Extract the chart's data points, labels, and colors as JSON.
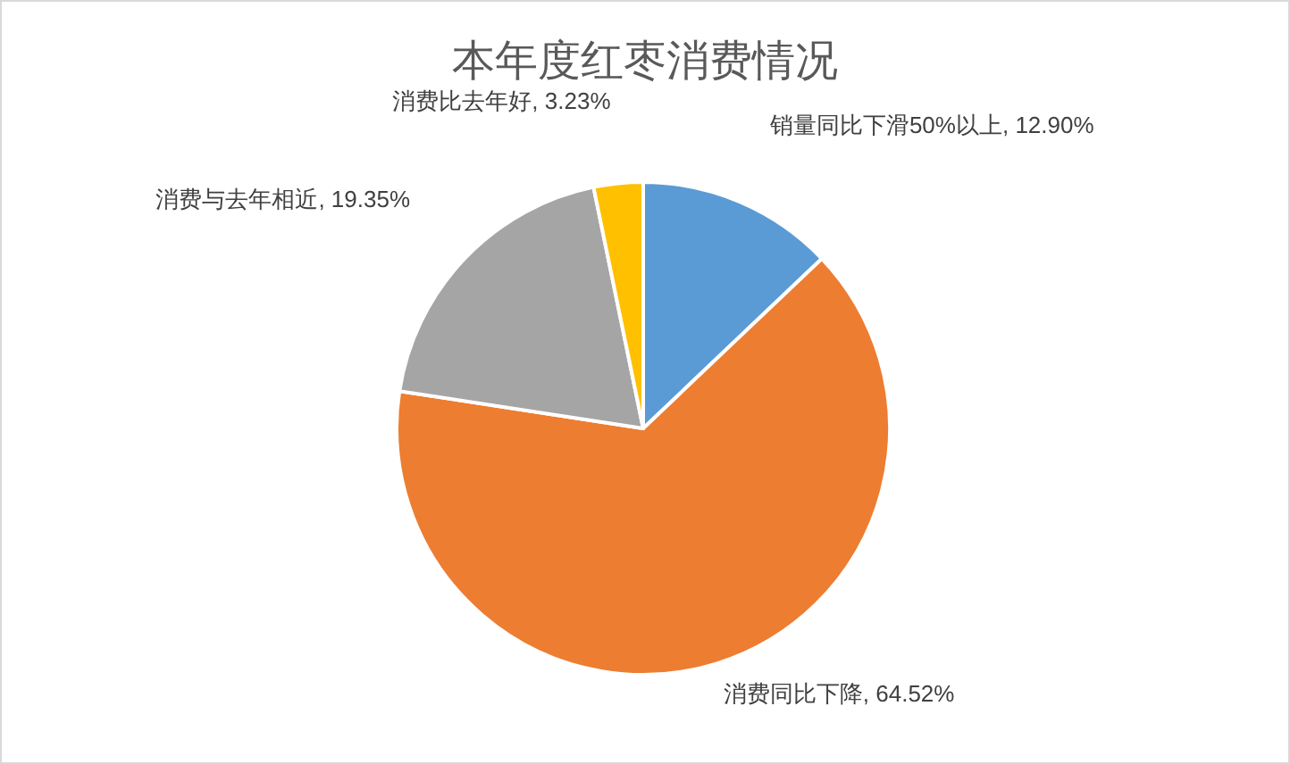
{
  "chart_data": {
    "type": "pie",
    "title": "本年度红枣消费情况",
    "categories": [
      "销量同比下滑50%以上",
      "消费同比下降",
      "消费与去年相近",
      "消费比去年好"
    ],
    "values": [
      12.9,
      64.52,
      19.35,
      3.23
    ],
    "value_labels": [
      "12.90%",
      "64.52%",
      "19.35%",
      "3.23%"
    ],
    "colors": [
      "#5b9bd5",
      "#ed7d31",
      "#a5a5a5",
      "#ffc000"
    ]
  }
}
